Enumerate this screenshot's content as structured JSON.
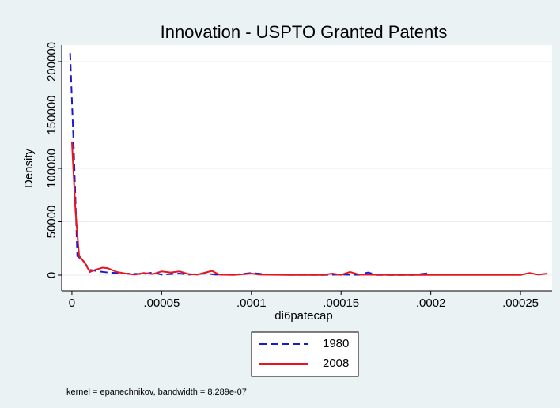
{
  "chart_data": {
    "type": "line",
    "title": "Innovation - USPTO Granted Patents",
    "x_label": "di6patecap",
    "y_label": "Density",
    "note": "kernel = epanechnikov, bandwidth =  8.289e-07",
    "xlim": [
      -5.7e-06,
      0.0002676
    ],
    "ylim": [
      -14815,
      215556
    ],
    "xticks": [
      0,
      {
        "value": 5e-05,
        "label": ".00005"
      },
      {
        "value": 0.0001,
        "label": ".0001"
      },
      {
        "value": 0.00015,
        "label": ".00015"
      },
      {
        "value": 0.0002,
        "label": ".0002"
      },
      {
        "value": 0.00025,
        "label": ".00025"
      }
    ],
    "yticks": [
      0,
      50000,
      100000,
      150000,
      200000
    ],
    "grid": true,
    "legend": "bottom",
    "series": [
      {
        "name": "1980",
        "color": "#1a1acc",
        "dash": true,
        "x": [
          -1e-06,
          1e-06,
          3e-06,
          6e-06,
          1e-05,
          1.5e-05,
          2e-05,
          3e-05,
          4e-05,
          4.5e-05,
          5e-05,
          6e-05,
          6.5e-05,
          7.5e-05,
          8e-05,
          9e-05,
          0.0001,
          0.00011,
          0.00012,
          0.00014,
          0.00015,
          0.00016,
          0.000165,
          0.00017,
          0.00019,
          0.0002
        ],
        "values": [
          208000,
          120000,
          18000,
          14000,
          5000,
          3500,
          2500,
          1500,
          1000,
          2500,
          500,
          1500,
          500,
          1500,
          500,
          300,
          2000,
          500,
          300,
          200,
          500,
          300,
          2500,
          200,
          200,
          2000
        ]
      },
      {
        "name": "2008",
        "color": "#e8141e",
        "dash": false,
        "x": [
          0,
          2e-06,
          4e-06,
          7e-06,
          1e-05,
          1.3e-05,
          1.7e-05,
          2e-05,
          2.5e-05,
          3e-05,
          3.5e-05,
          4e-05,
          4.5e-05,
          5e-05,
          5.5e-05,
          6e-05,
          6.5e-05,
          7e-05,
          7.8e-05,
          8.2e-05,
          9e-05,
          0.0001,
          0.000105,
          0.00012,
          0.00014,
          0.000145,
          0.00015,
          0.000155,
          0.00016,
          0.00018,
          0.0002,
          0.00025,
          0.000255,
          0.00026,
          0.000265
        ],
        "values": [
          125000,
          60000,
          18000,
          12000,
          3000,
          5000,
          7000,
          6500,
          3000,
          1500,
          500,
          2000,
          1000,
          3500,
          2500,
          3500,
          1000,
          500,
          4000,
          500,
          200,
          1500,
          500,
          200,
          200,
          1500,
          200,
          3000,
          500,
          200,
          200,
          200,
          2000,
          500,
          1500
        ]
      }
    ]
  }
}
